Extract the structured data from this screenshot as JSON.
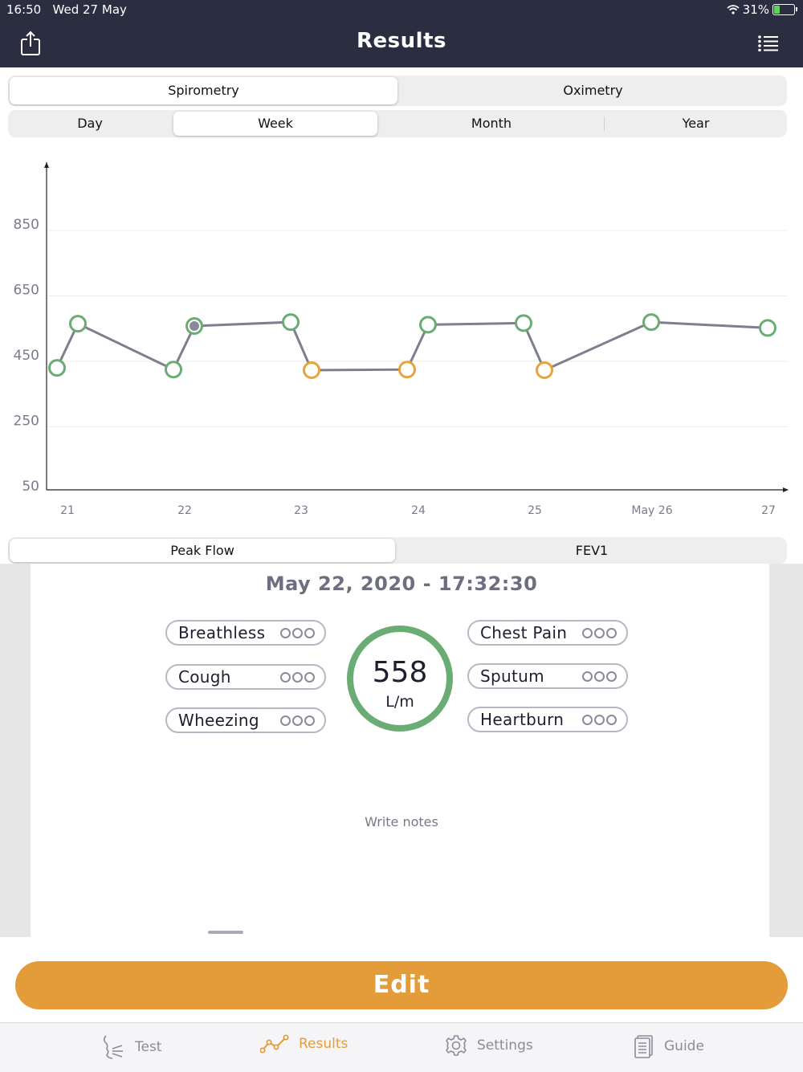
{
  "status_bar": {
    "time": "16:50",
    "date": "Wed 27 May",
    "battery": "31%",
    "battery_level": 0.31
  },
  "header": {
    "title": "Results",
    "share_icon": "share-icon",
    "menu_icon": "list-icon"
  },
  "test_tabs": {
    "items": [
      "Spirometry",
      "Oximetry"
    ],
    "selected": "Spirometry"
  },
  "period_tabs": {
    "items": [
      "Day",
      "Week",
      "Month",
      "Year"
    ],
    "selected": "Week"
  },
  "chart_data": {
    "type": "line",
    "y_ticks": [
      "850",
      "650",
      "450",
      "250",
      "50"
    ],
    "ylim": [
      50,
      1000
    ],
    "grid": true,
    "x_ticks": [
      "21",
      "22",
      "23",
      "24",
      "25",
      "May 26",
      "27"
    ],
    "points": [
      {
        "x": "May 21 early",
        "y": 430,
        "color": "green"
      },
      {
        "x": "May 21 late",
        "y": 565,
        "color": "green"
      },
      {
        "x": "May 22 early",
        "y": 425,
        "color": "green"
      },
      {
        "x": "May 22 17:32",
        "y": 558,
        "color": "green",
        "selected": true
      },
      {
        "x": "May 23 early",
        "y": 570,
        "color": "green"
      },
      {
        "x": "May 23 late",
        "y": 423,
        "color": "orange"
      },
      {
        "x": "May 24 early",
        "y": 425,
        "color": "orange"
      },
      {
        "x": "May 24 late",
        "y": 562,
        "color": "green"
      },
      {
        "x": "May 25 early",
        "y": 567,
        "color": "green"
      },
      {
        "x": "May 25 late",
        "y": 423,
        "color": "orange"
      },
      {
        "x": "May 26",
        "y": 570,
        "color": "green"
      },
      {
        "x": "May 27",
        "y": 552,
        "color": "green"
      }
    ],
    "colors": {
      "green": "#6aac73",
      "orange": "#e9a33a",
      "line": "#7d7f8e",
      "selected": "#8a8b96"
    }
  },
  "metric_tabs": {
    "items": [
      "Peak Flow",
      "FEV1"
    ],
    "selected": "Peak Flow"
  },
  "detail": {
    "date": "May 22, 2020 - 17:32:30",
    "value": "558",
    "unit": "L/m",
    "symptoms_left": [
      "Breathless",
      "Cough",
      "Wheezing"
    ],
    "symptoms_right": [
      "Chest Pain",
      "Sputum",
      "Heartburn"
    ],
    "notes_placeholder": "Write notes"
  },
  "edit_button": "Edit",
  "tab_bar": {
    "items": [
      {
        "label": "Test",
        "icon": "breath-icon"
      },
      {
        "label": "Results",
        "icon": "chart-line-icon"
      },
      {
        "label": "Settings",
        "icon": "gear-icon"
      },
      {
        "label": "Guide",
        "icon": "document-icon"
      }
    ],
    "selected": "Results"
  },
  "colors": {
    "header": "#2b2d41",
    "accent": "#e49c3b",
    "gauge": "#6aac73"
  }
}
